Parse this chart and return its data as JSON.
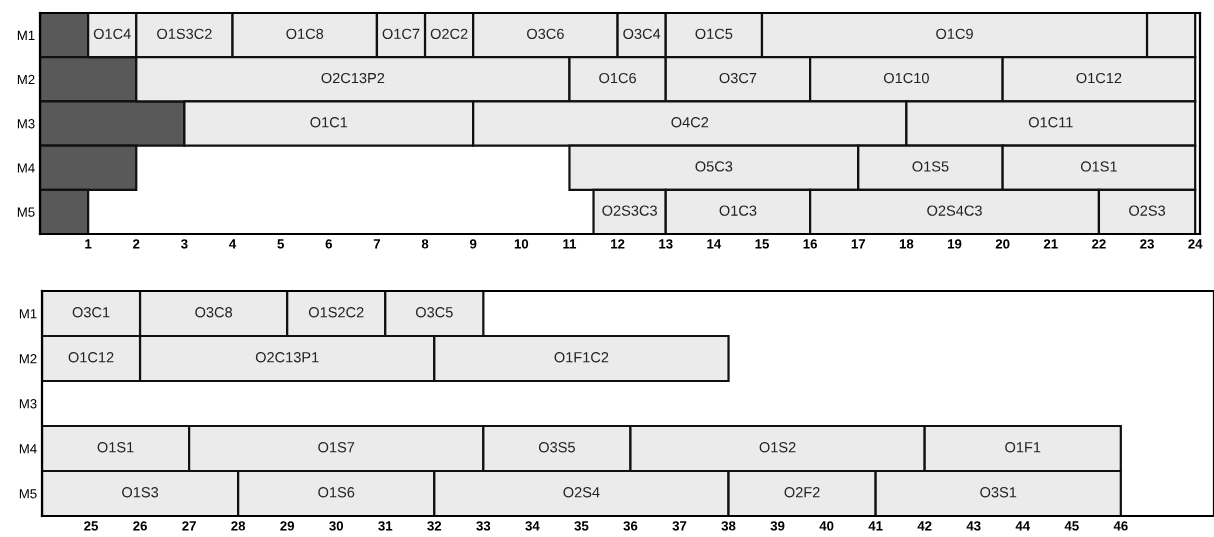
{
  "chart_data": [
    {
      "type": "bar",
      "orientation": "horizontal",
      "categories": [
        "M1",
        "M2",
        "M3",
        "M4",
        "M5"
      ],
      "xlim": [
        0,
        24.1
      ],
      "xticks": [
        1,
        2,
        3,
        4,
        5,
        6,
        7,
        8,
        9,
        10,
        11,
        12,
        13,
        14,
        15,
        16,
        17,
        18,
        19,
        20,
        21,
        22,
        23,
        24
      ],
      "legend": false,
      "grid": false,
      "series": [
        {
          "color": "#595959",
          "base": [
            0,
            0,
            0,
            0,
            0
          ],
          "values": [
            1,
            2,
            3,
            2,
            1
          ]
        },
        {
          "name": "O1C4",
          "color": "#ebebeb",
          "base": [
            1,
            null,
            null,
            null,
            null
          ],
          "values": [
            1,
            null,
            null,
            null,
            null
          ]
        },
        {
          "name": "O1S3C2",
          "color": "#ebebeb",
          "base": [
            2,
            null,
            null,
            null,
            null
          ],
          "values": [
            2,
            null,
            null,
            null,
            null
          ]
        },
        {
          "name": "O1C8",
          "color": "#ebebeb",
          "base": [
            4,
            null,
            null,
            null,
            null
          ],
          "values": [
            3,
            null,
            null,
            null,
            null
          ]
        },
        {
          "name": "O1C7",
          "color": "#ebebeb",
          "base": [
            7,
            null,
            null,
            null,
            null
          ],
          "values": [
            1,
            null,
            null,
            null,
            null
          ]
        },
        {
          "name": "O2C2",
          "color": "#ebebeb",
          "base": [
            8,
            null,
            null,
            null,
            null
          ],
          "values": [
            1,
            null,
            null,
            null,
            null
          ]
        },
        {
          "name": "O3C6",
          "color": "#ebebeb",
          "base": [
            9,
            null,
            null,
            null,
            null
          ],
          "values": [
            3,
            null,
            null,
            null,
            null
          ]
        },
        {
          "name": "O3C4",
          "color": "#ebebeb",
          "base": [
            12,
            null,
            null,
            null,
            null
          ],
          "values": [
            1,
            null,
            null,
            null,
            null
          ]
        },
        {
          "name": "O1C5",
          "color": "#ebebeb",
          "base": [
            13,
            null,
            null,
            null,
            null
          ],
          "values": [
            2,
            null,
            null,
            null,
            null
          ]
        },
        {
          "name": "O1C9",
          "color": "#ebebeb",
          "base": [
            15,
            null,
            null,
            null,
            null
          ],
          "values": [
            8,
            null,
            null,
            null,
            null
          ]
        },
        {
          "color": "#ebebeb",
          "base": [
            23,
            null,
            null,
            null,
            null
          ],
          "values": [
            1,
            null,
            null,
            null,
            null
          ]
        },
        {
          "name": "O2C13P2",
          "color": "#ebebeb",
          "base": [
            null,
            2,
            null,
            null,
            null
          ],
          "values": [
            null,
            9,
            null,
            null,
            null
          ]
        },
        {
          "name": "O1C6",
          "color": "#ebebeb",
          "base": [
            null,
            11,
            null,
            null,
            null
          ],
          "values": [
            null,
            2,
            null,
            null,
            null
          ]
        },
        {
          "name": "O3C7",
          "color": "#ebebeb",
          "base": [
            null,
            13,
            null,
            null,
            null
          ],
          "values": [
            null,
            3,
            null,
            null,
            null
          ]
        },
        {
          "name": "O1C10",
          "color": "#ebebeb",
          "base": [
            null,
            16,
            null,
            null,
            null
          ],
          "values": [
            null,
            4,
            null,
            null,
            null
          ]
        },
        {
          "name": "O1C12",
          "color": "#ebebeb",
          "base": [
            null,
            20,
            null,
            null,
            null
          ],
          "values": [
            null,
            4,
            null,
            null,
            null
          ]
        },
        {
          "name": "O1C1",
          "color": "#ebebeb",
          "base": [
            null,
            null,
            3,
            null,
            null
          ],
          "values": [
            null,
            null,
            6,
            null,
            null
          ]
        },
        {
          "name": "O4C2",
          "color": "#ebebeb",
          "base": [
            null,
            null,
            9,
            null,
            null
          ],
          "values": [
            null,
            null,
            9,
            null,
            null
          ]
        },
        {
          "name": "O1C11",
          "color": "#ebebeb",
          "base": [
            null,
            null,
            18,
            null,
            null
          ],
          "values": [
            null,
            null,
            6,
            null,
            null
          ]
        },
        {
          "name": "O5C3",
          "color": "#ebebeb",
          "base": [
            null,
            null,
            null,
            11,
            null
          ],
          "values": [
            null,
            null,
            null,
            6,
            null
          ]
        },
        {
          "name": "O1S5",
          "color": "#ebebeb",
          "base": [
            null,
            null,
            null,
            17,
            null
          ],
          "values": [
            null,
            null,
            null,
            3,
            null
          ]
        },
        {
          "name": "O1S1",
          "color": "#ebebeb",
          "base": [
            null,
            null,
            null,
            20,
            null
          ],
          "values": [
            null,
            null,
            null,
            4,
            null
          ]
        },
        {
          "name": "O2S3C3",
          "color": "#ebebeb",
          "base": [
            null,
            null,
            null,
            null,
            11.5
          ],
          "values": [
            null,
            null,
            null,
            null,
            1.5
          ]
        },
        {
          "name": "O1C3",
          "color": "#ebebeb",
          "base": [
            null,
            null,
            null,
            null,
            13
          ],
          "values": [
            null,
            null,
            null,
            null,
            3
          ]
        },
        {
          "name": "O2S4C3",
          "color": "#ebebeb",
          "base": [
            null,
            null,
            null,
            null,
            16
          ],
          "values": [
            null,
            null,
            null,
            null,
            6
          ]
        },
        {
          "name": "O2S3",
          "color": "#ebebeb",
          "base": [
            null,
            null,
            null,
            null,
            22
          ],
          "values": [
            null,
            null,
            null,
            null,
            2
          ]
        }
      ]
    },
    {
      "type": "bar",
      "orientation": "horizontal",
      "categories": [
        "M1",
        "M2",
        "M3",
        "M4",
        "M5"
      ],
      "xlim": [
        24,
        47.9
      ],
      "xticks": [
        25,
        26,
        27,
        28,
        29,
        30,
        31,
        32,
        33,
        34,
        35,
        36,
        37,
        38,
        39,
        40,
        41,
        42,
        43,
        44,
        45,
        46
      ],
      "legend": false,
      "grid": false,
      "series": [
        {
          "name": "O3C1",
          "color": "#ebebeb",
          "base": [
            24,
            null,
            null,
            null,
            null
          ],
          "values": [
            2,
            null,
            null,
            null,
            null
          ]
        },
        {
          "name": "O3C8",
          "color": "#ebebeb",
          "base": [
            26,
            null,
            null,
            null,
            null
          ],
          "values": [
            3,
            null,
            null,
            null,
            null
          ]
        },
        {
          "name": "O1S2C2",
          "color": "#ebebeb",
          "base": [
            29,
            null,
            null,
            null,
            null
          ],
          "values": [
            2,
            null,
            null,
            null,
            null
          ]
        },
        {
          "name": "O3C5",
          "color": "#ebebeb",
          "base": [
            31,
            null,
            null,
            null,
            null
          ],
          "values": [
            2,
            null,
            null,
            null,
            null
          ]
        },
        {
          "name": "O1C12",
          "color": "#ebebeb",
          "base": [
            null,
            24,
            null,
            null,
            null
          ],
          "values": [
            null,
            2,
            null,
            null,
            null
          ]
        },
        {
          "name": "O2C13P1",
          "color": "#ebebeb",
          "base": [
            null,
            26,
            null,
            null,
            null
          ],
          "values": [
            null,
            6,
            null,
            null,
            null
          ]
        },
        {
          "name": "O1F1C2",
          "color": "#ebebeb",
          "base": [
            null,
            32,
            null,
            null,
            null
          ],
          "values": [
            null,
            6,
            null,
            null,
            null
          ]
        },
        {
          "name": "O1S1",
          "color": "#ebebeb",
          "base": [
            null,
            null,
            null,
            24,
            null
          ],
          "values": [
            null,
            null,
            null,
            3,
            null
          ]
        },
        {
          "name": "O1S7",
          "color": "#ebebeb",
          "base": [
            null,
            null,
            null,
            27,
            null
          ],
          "values": [
            null,
            null,
            null,
            6,
            null
          ]
        },
        {
          "name": "O3S5",
          "color": "#ebebeb",
          "base": [
            null,
            null,
            null,
            33,
            null
          ],
          "values": [
            null,
            null,
            null,
            3,
            null
          ]
        },
        {
          "name": "O1S2",
          "color": "#ebebeb",
          "base": [
            null,
            null,
            null,
            36,
            null
          ],
          "values": [
            null,
            null,
            null,
            6,
            null
          ]
        },
        {
          "name": "O1F1",
          "color": "#ebebeb",
          "base": [
            null,
            null,
            null,
            42,
            null
          ],
          "values": [
            null,
            null,
            null,
            4,
            null
          ]
        },
        {
          "name": "O1S3",
          "color": "#ebebeb",
          "base": [
            null,
            null,
            null,
            null,
            24
          ],
          "values": [
            null,
            null,
            null,
            null,
            4
          ]
        },
        {
          "name": "O1S6",
          "color": "#ebebeb",
          "base": [
            null,
            null,
            null,
            null,
            28
          ],
          "values": [
            null,
            null,
            null,
            null,
            4
          ]
        },
        {
          "name": "O2S4",
          "color": "#ebebeb",
          "base": [
            null,
            null,
            null,
            null,
            32
          ],
          "values": [
            null,
            null,
            null,
            null,
            6
          ]
        },
        {
          "name": "O2F2",
          "color": "#ebebeb",
          "base": [
            null,
            null,
            null,
            null,
            38
          ],
          "values": [
            null,
            null,
            null,
            null,
            3
          ]
        },
        {
          "name": "O3S1",
          "color": "#ebebeb",
          "base": [
            null,
            null,
            null,
            null,
            41
          ],
          "values": [
            null,
            null,
            null,
            null,
            5
          ]
        }
      ]
    }
  ]
}
